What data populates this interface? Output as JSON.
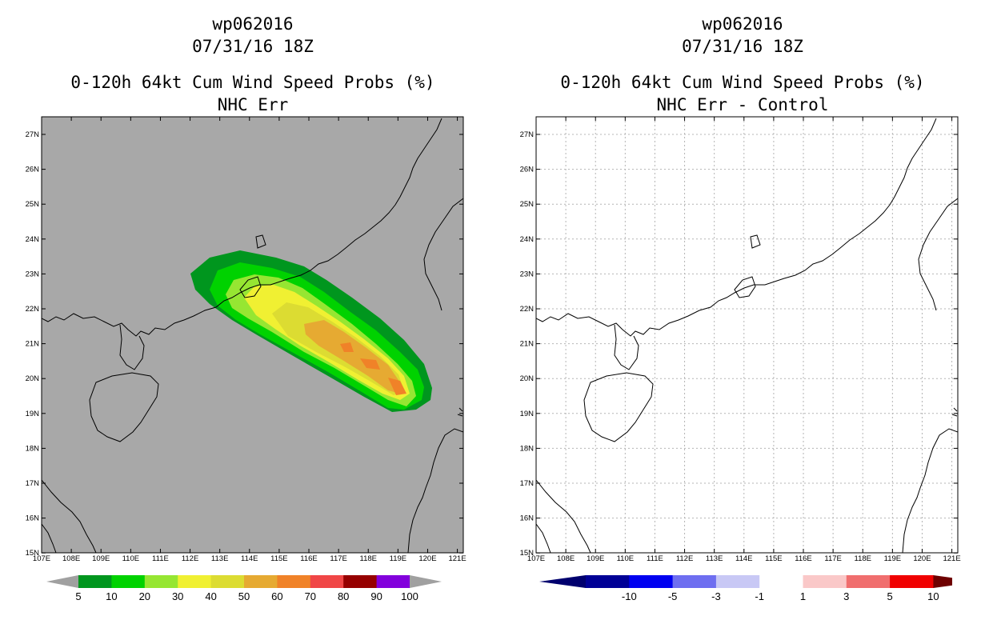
{
  "left_panel": {
    "title_line1": "wp062016",
    "title_line2": "07/31/16 18Z",
    "title_line3": "0-120h 64kt Cum Wind Speed Probs (%)",
    "title_line4": "NHC Err",
    "background_color": "#a8a8a8",
    "colorbar": {
      "labels": [
        "5",
        "10",
        "20",
        "30",
        "40",
        "50",
        "60",
        "70",
        "80",
        "90",
        "100"
      ],
      "colors": [
        "#00961e",
        "#00d200",
        "#96e632",
        "#f0f032",
        "#dcdc32",
        "#e6aa32",
        "#f08228",
        "#f04646",
        "#960000",
        "#8200dc"
      ],
      "end_arrow_color": "#a0a0a0"
    }
  },
  "right_panel": {
    "title_line1": "wp062016",
    "title_line2": "07/31/16 18Z",
    "title_line3": "0-120h 64kt Cum Wind Speed Probs (%)",
    "title_line4": "NHC Err - Control",
    "background_color": "#ffffff",
    "colorbar": {
      "labels": [
        "-10",
        "-5",
        "-3",
        "-1",
        "1",
        "3",
        "5",
        "10"
      ],
      "colors": [
        "#000096",
        "#0000f0",
        "#6e6ef0",
        "#c8c8f5",
        "#ffffff",
        "#fac8c8",
        "#f06e6e",
        "#f00000"
      ],
      "left_arrow_color": "#00006e",
      "right_arrow_color": "#6e0000"
    }
  },
  "map": {
    "lon_labels": [
      "107E",
      "108E",
      "109E",
      "110E",
      "111E",
      "112E",
      "113E",
      "114E",
      "115E",
      "116E",
      "117E",
      "118E",
      "119E",
      "120E",
      "121E"
    ],
    "lat_labels": [
      "27N",
      "26N",
      "25N",
      "24N",
      "23N",
      "22N",
      "21N",
      "20N",
      "19N",
      "18N",
      "17N",
      "16N",
      "15N"
    ]
  }
}
